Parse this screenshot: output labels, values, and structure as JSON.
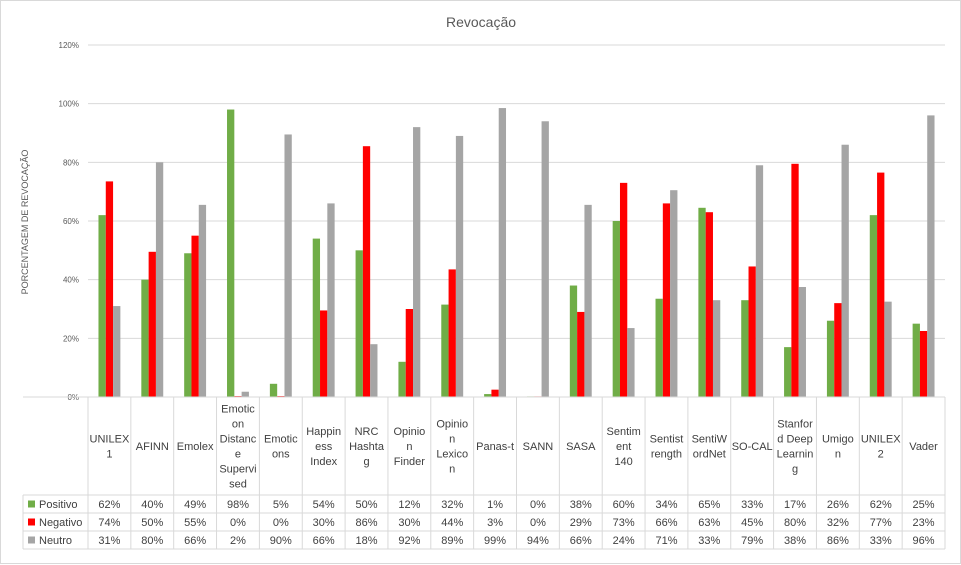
{
  "chart_data": {
    "type": "bar",
    "title": "Revocação",
    "ylabel": "PORCENTAGEM  DE REVOCAÇÃO",
    "ylim": [
      0,
      120
    ],
    "yticks": [
      "0%",
      "20%",
      "40%",
      "60%",
      "80%",
      "100%",
      "120%"
    ],
    "categories": [
      [
        "UNILEX",
        "1"
      ],
      [
        "AFINN"
      ],
      [
        "Emolex"
      ],
      [
        "Emotic",
        "on",
        "Distanc",
        "e",
        "Supervi",
        "sed"
      ],
      [
        "Emotic",
        "ons"
      ],
      [
        "Happin",
        "ess",
        "Index"
      ],
      [
        "NRC",
        "Hashta",
        "g"
      ],
      [
        "Opinio",
        "n",
        "Finder"
      ],
      [
        "Opinio",
        "n",
        "Lexico",
        "n"
      ],
      [
        "Panas-t"
      ],
      [
        "SANN"
      ],
      [
        "SASA"
      ],
      [
        "Sentim",
        "ent",
        "140"
      ],
      [
        "Sentist",
        "rength"
      ],
      [
        "SentiW",
        "ordNet"
      ],
      [
        "SO-CAL"
      ],
      [
        "Stanfor",
        "d Deep",
        "Learnin",
        "g"
      ],
      [
        "Umigo",
        "n"
      ],
      [
        "UNILEX",
        "2"
      ],
      [
        "Vader"
      ]
    ],
    "series": [
      {
        "name": "Positivo",
        "color": "#70ad47",
        "values": [
          62,
          40,
          49,
          98,
          4.5,
          54,
          50,
          12,
          31.5,
          1,
          0.2,
          38,
          60,
          33.5,
          64.5,
          33,
          17,
          26,
          62,
          25
        ],
        "labels": [
          "62%",
          "40%",
          "49%",
          "98%",
          "5%",
          "54%",
          "50%",
          "12%",
          "32%",
          "1%",
          "0%",
          "38%",
          "60%",
          "34%",
          "65%",
          "33%",
          "17%",
          "26%",
          "62%",
          "25%"
        ]
      },
      {
        "name": "Negativo",
        "color": "#ff0000",
        "values": [
          73.5,
          49.5,
          55,
          0.3,
          0.3,
          29.5,
          85.5,
          30,
          43.5,
          2.5,
          0.2,
          29,
          73,
          66,
          63,
          44.5,
          79.5,
          32,
          76.5,
          22.5
        ],
        "labels": [
          "74%",
          "50%",
          "55%",
          "0%",
          "0%",
          "30%",
          "86%",
          "30%",
          "44%",
          "3%",
          "0%",
          "29%",
          "73%",
          "66%",
          "63%",
          "45%",
          "80%",
          "32%",
          "77%",
          "23%"
        ]
      },
      {
        "name": "Neutro",
        "color": "#a5a5a5",
        "values": [
          31,
          80,
          65.5,
          1.8,
          89.5,
          66,
          18,
          92,
          89,
          98.5,
          94,
          65.5,
          23.5,
          70.5,
          33,
          79,
          37.5,
          86,
          32.5,
          96
        ],
        "labels": [
          "31%",
          "80%",
          "66%",
          "2%",
          "90%",
          "66%",
          "18%",
          "92%",
          "89%",
          "99%",
          "94%",
          "66%",
          "24%",
          "71%",
          "33%",
          "79%",
          "38%",
          "86%",
          "33%",
          "96%"
        ]
      }
    ],
    "legend": "data-table-rows",
    "grid": true
  }
}
